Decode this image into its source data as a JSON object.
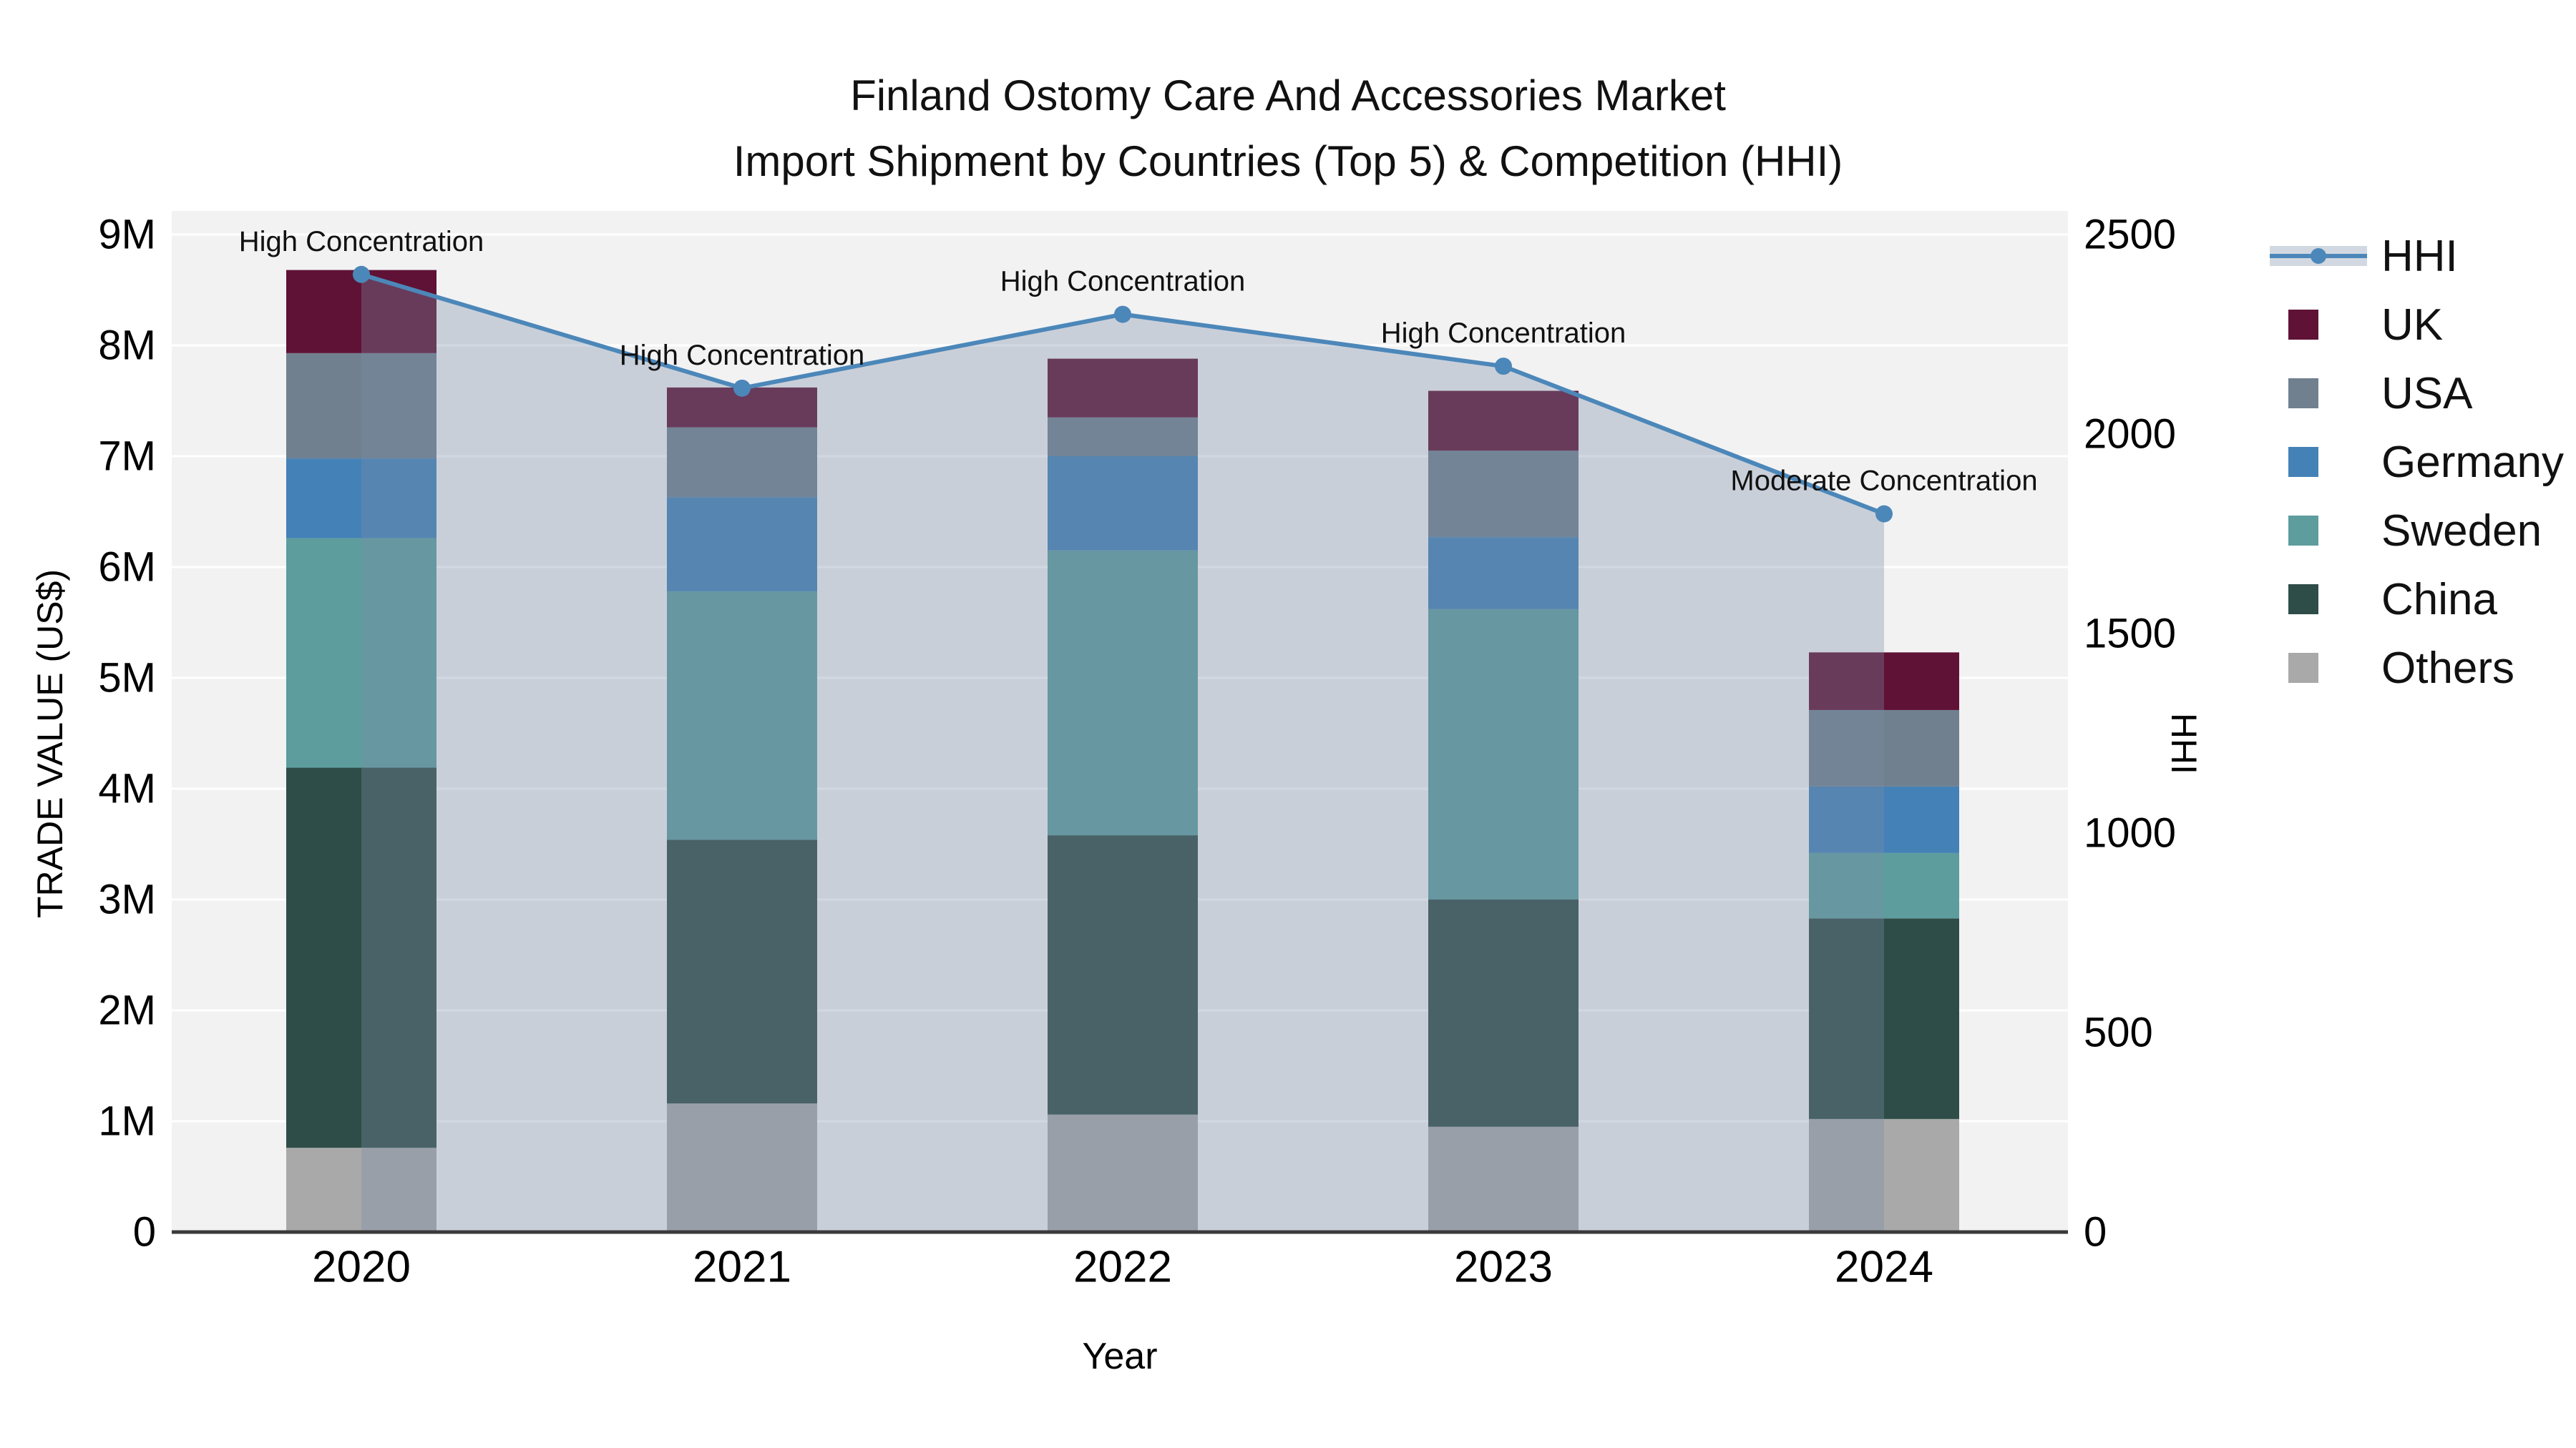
{
  "title": {
    "line1": "Finland Ostomy Care And Accessories Market",
    "line2": "Import Shipment by Countries (Top 5) & Competition (HHI)"
  },
  "axis": {
    "y_left": {
      "title": "TRADE VALUE (US$)",
      "ticks": [
        "0",
        "1M",
        "2M",
        "3M",
        "4M",
        "5M",
        "6M",
        "7M",
        "8M",
        "9M"
      ]
    },
    "y_right": {
      "title": "HHI",
      "ticks": [
        "0",
        "500",
        "1000",
        "1500",
        "2000",
        "2500"
      ]
    },
    "x": {
      "title": "Year"
    }
  },
  "legend": {
    "items": [
      {
        "label": "HHI",
        "type": "line",
        "color": "#4C87B9"
      },
      {
        "label": "UK",
        "type": "square",
        "color": "#5F1235"
      },
      {
        "label": "USA",
        "type": "square",
        "color": "#70808F"
      },
      {
        "label": "Germany",
        "type": "square",
        "color": "#4481B6"
      },
      {
        "label": "Sweden",
        "type": "square",
        "color": "#5D9D9E"
      },
      {
        "label": "China",
        "type": "square",
        "color": "#2F4D48"
      },
      {
        "label": "Others",
        "type": "square",
        "color": "#A9A9A9"
      }
    ]
  },
  "chart_data": {
    "type": "bar+line",
    "title": "Finland Ostomy Care And Accessories Market — Import Shipment by Countries (Top 5) & Competition (HHI)",
    "categories": [
      "2020",
      "2021",
      "2022",
      "2023",
      "2024"
    ],
    "bar_unit": "million US$",
    "stack_order_bottom_to_top": [
      "Others",
      "China",
      "Sweden",
      "Germany",
      "USA",
      "UK"
    ],
    "series": [
      {
        "name": "Others",
        "color": "#A9A9A9",
        "values": [
          0.76,
          1.16,
          1.06,
          0.95,
          1.02
        ]
      },
      {
        "name": "China",
        "color": "#2F4D48",
        "values": [
          3.43,
          2.38,
          2.52,
          2.05,
          1.81
        ]
      },
      {
        "name": "Sweden",
        "color": "#5D9D9E",
        "values": [
          2.07,
          2.24,
          2.57,
          2.62,
          0.59
        ]
      },
      {
        "name": "Germany",
        "color": "#4481B6",
        "values": [
          0.72,
          0.85,
          0.85,
          0.65,
          0.6
        ]
      },
      {
        "name": "USA",
        "color": "#70808F",
        "values": [
          0.95,
          0.63,
          0.35,
          0.78,
          0.69
        ]
      },
      {
        "name": "UK",
        "color": "#5F1235",
        "values": [
          0.75,
          0.36,
          0.53,
          0.54,
          0.52
        ]
      }
    ],
    "bar_totals": [
      8.68,
      7.62,
      7.88,
      7.59,
      5.23
    ],
    "line_series": {
      "name": "HHI",
      "color": "#4C87B9",
      "area_fill": "rgba(122,140,166,0.34)",
      "values": [
        2400,
        2115,
        2300,
        2170,
        1800
      ]
    },
    "annotations": [
      {
        "x": "2020",
        "text": "High Concentration"
      },
      {
        "x": "2021",
        "text": "High Concentration"
      },
      {
        "x": "2022",
        "text": "High Concentration"
      },
      {
        "x": "2023",
        "text": "High Concentration"
      },
      {
        "x": "2024",
        "text": "Moderate Concentration"
      }
    ],
    "ylim_left_musd": [
      0,
      9
    ],
    "ylim_right_hhi": [
      0,
      2500
    ],
    "grid": "horizontal major gridlines, white on light-gray plot background",
    "plot_bg": "#F2F2F3",
    "axis_line_color": "#3A3A3A"
  }
}
